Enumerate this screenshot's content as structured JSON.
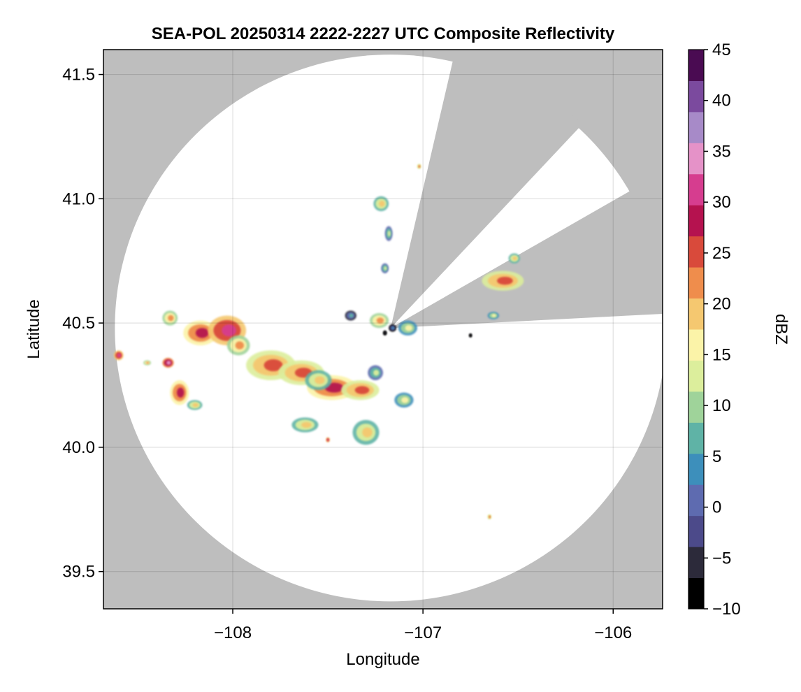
{
  "chart_data": {
    "type": "heatmap",
    "title": "SEA-POL 20250314 2222-2227 UTC Composite Reflectivity",
    "xlabel": "Longitude",
    "ylabel": "Latitude",
    "xlim": [
      -108.68,
      -105.74
    ],
    "ylim": [
      39.35,
      41.6
    ],
    "x_ticks": [
      -108,
      -107,
      -106
    ],
    "x_tick_labels": [
      "−108",
      "−107",
      "−106"
    ],
    "y_ticks": [
      39.5,
      40.0,
      40.5,
      41.0,
      41.5
    ],
    "y_tick_labels": [
      "39.5",
      "40.0",
      "40.5",
      "41.0",
      "41.5"
    ],
    "grid": true,
    "background_color": "#bebebe",
    "coverage_color": "#ffffff",
    "radar": {
      "lon": -107.17,
      "lat": 40.48,
      "range_deg_lat": 1.1,
      "range_deg_lon": 1.45,
      "blocked_sector_deg": [
        [
          13,
          43
        ],
        [
          60,
          87
        ]
      ]
    },
    "colorbar": {
      "label": "dBZ",
      "min": -10,
      "max": 45,
      "ticks": [
        -10,
        -5,
        0,
        5,
        10,
        15,
        20,
        25,
        30,
        35,
        40,
        45
      ],
      "tick_labels": [
        "−10",
        "−5",
        "0",
        "5",
        "10",
        "15",
        "20",
        "25",
        "30",
        "35",
        "40",
        "45"
      ],
      "colors": [
        "#000000",
        "#2c2a3a",
        "#4c4a8a",
        "#5e6bb0",
        "#3d8fbb",
        "#5fb3a6",
        "#9fd39a",
        "#dcee9c",
        "#fbf3a8",
        "#f5c870",
        "#ef8d4c",
        "#d94a3b",
        "#b5124f",
        "#d63d8f",
        "#e592c8",
        "#a78ac8",
        "#7b4a9e",
        "#4a0b52"
      ]
    },
    "echoes": [
      {
        "lon": -108.33,
        "lat": 40.52,
        "rx": 0.04,
        "ry": 0.03,
        "dbz": 18
      },
      {
        "lon": -108.17,
        "lat": 40.46,
        "rx": 0.09,
        "ry": 0.05,
        "dbz": 24
      },
      {
        "lon": -108.03,
        "lat": 40.47,
        "rx": 0.1,
        "ry": 0.06,
        "dbz": 28
      },
      {
        "lon": -107.97,
        "lat": 40.41,
        "rx": 0.06,
        "ry": 0.04,
        "dbz": 18
      },
      {
        "lon": -107.8,
        "lat": 40.33,
        "rx": 0.13,
        "ry": 0.06,
        "dbz": 20
      },
      {
        "lon": -107.64,
        "lat": 40.3,
        "rx": 0.12,
        "ry": 0.05,
        "dbz": 21
      },
      {
        "lon": -107.48,
        "lat": 40.24,
        "rx": 0.13,
        "ry": 0.05,
        "dbz": 25
      },
      {
        "lon": -107.33,
        "lat": 40.23,
        "rx": 0.1,
        "ry": 0.04,
        "dbz": 22
      },
      {
        "lon": -107.55,
        "lat": 40.27,
        "rx": 0.07,
        "ry": 0.04,
        "dbz": 14
      },
      {
        "lon": -107.1,
        "lat": 40.19,
        "rx": 0.05,
        "ry": 0.03,
        "dbz": 12
      },
      {
        "lon": -108.6,
        "lat": 40.37,
        "rx": 0.025,
        "ry": 0.02,
        "dbz": 27
      },
      {
        "lon": -108.34,
        "lat": 40.34,
        "rx": 0.03,
        "ry": 0.02,
        "dbz": 29
      },
      {
        "lon": -108.45,
        "lat": 40.34,
        "rx": 0.02,
        "ry": 0.01,
        "dbz": 17
      },
      {
        "lon": -108.28,
        "lat": 40.22,
        "rx": 0.05,
        "ry": 0.05,
        "dbz": 24
      },
      {
        "lon": -108.2,
        "lat": 40.17,
        "rx": 0.04,
        "ry": 0.02,
        "dbz": 16
      },
      {
        "lon": -107.62,
        "lat": 40.09,
        "rx": 0.07,
        "ry": 0.03,
        "dbz": 16
      },
      {
        "lon": -107.3,
        "lat": 40.06,
        "rx": 0.07,
        "ry": 0.05,
        "dbz": 14
      },
      {
        "lon": -107.25,
        "lat": 40.3,
        "rx": 0.04,
        "ry": 0.03,
        "dbz": 9
      },
      {
        "lon": -107.23,
        "lat": 40.51,
        "rx": 0.05,
        "ry": 0.03,
        "dbz": 18
      },
      {
        "lon": -107.08,
        "lat": 40.48,
        "rx": 0.05,
        "ry": 0.03,
        "dbz": 12
      },
      {
        "lon": -107.38,
        "lat": 40.53,
        "rx": 0.03,
        "ry": 0.02,
        "dbz": 2
      },
      {
        "lon": -107.16,
        "lat": 40.48,
        "rx": 0.02,
        "ry": 0.015,
        "dbz": 0
      },
      {
        "lon": -106.58,
        "lat": 40.67,
        "rx": 0.11,
        "ry": 0.04,
        "dbz": 20
      },
      {
        "lon": -106.52,
        "lat": 40.76,
        "rx": 0.03,
        "ry": 0.02,
        "dbz": 15
      },
      {
        "lon": -106.63,
        "lat": 40.53,
        "rx": 0.03,
        "ry": 0.015,
        "dbz": 12
      },
      {
        "lon": -107.22,
        "lat": 40.98,
        "rx": 0.04,
        "ry": 0.03,
        "dbz": 16
      },
      {
        "lon": -107.02,
        "lat": 41.13,
        "rx": 0.01,
        "ry": 0.01,
        "dbz": 20
      },
      {
        "lon": -107.18,
        "lat": 40.86,
        "rx": 0.02,
        "ry": 0.03,
        "dbz": 10
      },
      {
        "lon": -107.2,
        "lat": 40.72,
        "rx": 0.02,
        "ry": 0.02,
        "dbz": 8
      },
      {
        "lon": -107.5,
        "lat": 40.03,
        "rx": 0.01,
        "ry": 0.01,
        "dbz": 28
      },
      {
        "lon": -106.65,
        "lat": 39.72,
        "rx": 0.01,
        "ry": 0.01,
        "dbz": 22
      },
      {
        "lon": -107.2,
        "lat": 40.46,
        "rx": 0.01,
        "ry": 0.01,
        "dbz": -8
      },
      {
        "lon": -106.75,
        "lat": 40.45,
        "rx": 0.008,
        "ry": 0.008,
        "dbz": -10
      }
    ]
  }
}
